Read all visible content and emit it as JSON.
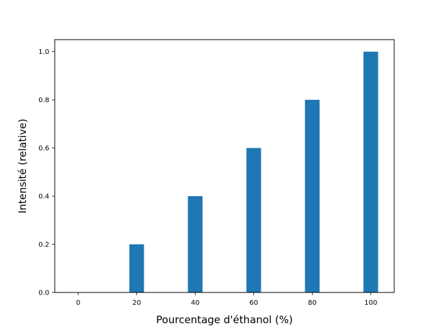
{
  "chart_data": {
    "type": "bar",
    "x": [
      0,
      20,
      40,
      60,
      80,
      100
    ],
    "values": [
      0.0,
      0.2,
      0.4,
      0.6,
      0.8,
      1.0
    ],
    "xlabel": "Pourcentage d'éthanol (%)",
    "ylabel": "Intensité (relative)",
    "xlim": [
      -8,
      108
    ],
    "ylim": [
      0,
      1.05
    ],
    "xticks": [
      "0",
      "20",
      "40",
      "60",
      "80",
      "100"
    ],
    "yticks": [
      "0.0",
      "0.2",
      "0.4",
      "0.6",
      "0.8",
      "1.0"
    ],
    "bar_width": 5,
    "bar_color": "#1f77b4",
    "grid": false,
    "legend": "none"
  }
}
